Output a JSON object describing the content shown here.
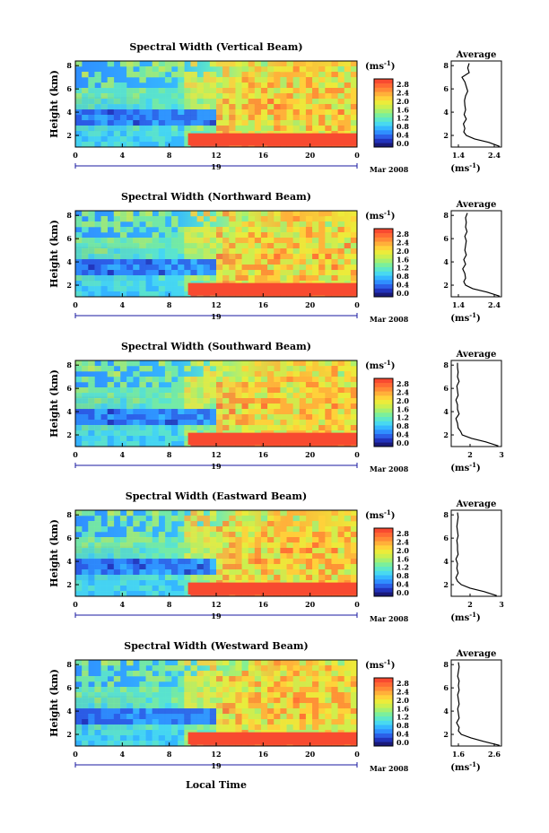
{
  "figure": {
    "xlabel": "Local Time",
    "day_label": "19",
    "month_label": "Mar 2008",
    "ylabel": "Height (km)",
    "colorbar_unit": "(ms",
    "colorbar_unit_exp": "-1",
    "average_title": "Average"
  },
  "colorbar": {
    "ticks": [
      "2.8",
      "2.4",
      "2.0",
      "1.6",
      "1.2",
      "0.8",
      "0.4",
      "0.0"
    ],
    "colors": [
      "#1a1a7a",
      "#2233bb",
      "#2c5fe8",
      "#2f8fff",
      "#35b7ff",
      "#48d9f0",
      "#5ee8c8",
      "#7bef9c",
      "#a6f070",
      "#cdef4e",
      "#ecec3a",
      "#ffd23a",
      "#ffb03a",
      "#ff8a36",
      "#ff6a34",
      "#f84a30"
    ]
  },
  "chart_data": [
    {
      "type": "heatmap",
      "title": "Spectral Width (Vertical Beam)",
      "xlabel": "Local Time",
      "ylabel": "Height (km)",
      "x_ticks": [
        "0",
        "4",
        "8",
        "12",
        "16",
        "20",
        "0"
      ],
      "xlim": [
        0,
        24
      ],
      "y_ticks": [
        "2",
        "4",
        "6",
        "8"
      ],
      "ylim": [
        1,
        8.4
      ],
      "colorbar": {
        "label": "(ms-1)",
        "range": [
          0.0,
          2.8
        ]
      },
      "average_profile": {
        "title": "Average",
        "xlabel": "(ms-1)",
        "x_ticks": [
          "1.4",
          "2.4"
        ],
        "xlim": [
          1.2,
          2.6
        ],
        "y_ticks": [
          "2",
          "4",
          "6",
          "8"
        ],
        "ylim": [
          1,
          8.4
        ],
        "height": [
          1.05,
          1.4,
          1.7,
          2.0,
          2.3,
          2.6,
          3.0,
          3.4,
          3.8,
          4.2,
          4.6,
          5.0,
          5.4,
          5.8,
          6.2,
          6.6,
          7.0,
          7.4,
          7.8,
          8.2
        ],
        "width": [
          2.55,
          2.25,
          1.85,
          1.62,
          1.55,
          1.58,
          1.54,
          1.62,
          1.56,
          1.6,
          1.58,
          1.57,
          1.6,
          1.66,
          1.62,
          1.58,
          1.5,
          1.7,
          1.66,
          1.7
        ]
      }
    },
    {
      "type": "heatmap",
      "title": "Spectral Width (Northward Beam)",
      "xlabel": "Local Time",
      "ylabel": "Height (km)",
      "x_ticks": [
        "0",
        "4",
        "8",
        "12",
        "16",
        "20",
        "0"
      ],
      "xlim": [
        0,
        24
      ],
      "y_ticks": [
        "2",
        "4",
        "6",
        "8"
      ],
      "ylim": [
        1,
        8.4
      ],
      "colorbar": {
        "label": "(ms-1)",
        "range": [
          0.0,
          2.8
        ]
      },
      "average_profile": {
        "title": "Average",
        "xlabel": "(ms-1)",
        "x_ticks": [
          "1.4",
          "2.4"
        ],
        "xlim": [
          1.2,
          2.6
        ],
        "y_ticks": [
          "2",
          "4",
          "6",
          "8"
        ],
        "ylim": [
          1,
          8.4
        ],
        "height": [
          1.05,
          1.4,
          1.7,
          2.0,
          2.3,
          2.6,
          3.0,
          3.4,
          3.8,
          4.2,
          4.6,
          5.0,
          5.4,
          5.8,
          6.2,
          6.6,
          7.0,
          7.4,
          7.8,
          8.2
        ],
        "width": [
          2.55,
          2.2,
          1.8,
          1.6,
          1.55,
          1.6,
          1.58,
          1.52,
          1.6,
          1.55,
          1.62,
          1.58,
          1.6,
          1.62,
          1.58,
          1.64,
          1.6,
          1.62,
          1.6,
          1.65
        ]
      }
    },
    {
      "type": "heatmap",
      "title": "Spectral Width (Southward Beam)",
      "xlabel": "Local Time",
      "ylabel": "Height (km)",
      "x_ticks": [
        "0",
        "4",
        "8",
        "12",
        "16",
        "20",
        "0"
      ],
      "xlim": [
        0,
        24
      ],
      "y_ticks": [
        "2",
        "4",
        "6",
        "8"
      ],
      "ylim": [
        1,
        8.4
      ],
      "colorbar": {
        "label": "(ms-1)",
        "range": [
          0.0,
          2.8
        ]
      },
      "average_profile": {
        "title": "Average",
        "xlabel": "(ms-1)",
        "x_ticks": [
          "2",
          "3"
        ],
        "xlim": [
          1.4,
          3.0
        ],
        "y_ticks": [
          "2",
          "4",
          "6",
          "8"
        ],
        "ylim": [
          1,
          8.4
        ],
        "height": [
          1.05,
          1.4,
          1.7,
          2.0,
          2.3,
          2.6,
          3.0,
          3.4,
          3.8,
          4.2,
          4.6,
          5.0,
          5.4,
          5.8,
          6.2,
          6.6,
          7.0,
          7.4,
          7.8,
          8.2
        ],
        "width": [
          2.9,
          2.5,
          2.05,
          1.75,
          1.7,
          1.62,
          1.6,
          1.55,
          1.65,
          1.6,
          1.6,
          1.55,
          1.62,
          1.6,
          1.58,
          1.65,
          1.6,
          1.62,
          1.6,
          1.6
        ]
      }
    },
    {
      "type": "heatmap",
      "title": "Spectral Width (Eastward Beam)",
      "xlabel": "Local Time",
      "ylabel": "Height (km)",
      "x_ticks": [
        "0",
        "4",
        "8",
        "12",
        "16",
        "20",
        "0"
      ],
      "xlim": [
        0,
        24
      ],
      "y_ticks": [
        "2",
        "4",
        "6",
        "8"
      ],
      "ylim": [
        1,
        8.4
      ],
      "colorbar": {
        "label": "(ms-1)",
        "range": [
          0.0,
          2.8
        ]
      },
      "average_profile": {
        "title": "Average",
        "xlabel": "(ms-1)",
        "x_ticks": [
          "2",
          "3"
        ],
        "xlim": [
          1.4,
          3.0
        ],
        "y_ticks": [
          "2",
          "4",
          "6",
          "8"
        ],
        "ylim": [
          1,
          8.4
        ],
        "height": [
          1.05,
          1.4,
          1.7,
          2.0,
          2.3,
          2.6,
          3.0,
          3.4,
          3.8,
          4.2,
          4.6,
          5.0,
          5.4,
          5.8,
          6.2,
          6.6,
          7.0,
          7.4,
          7.8,
          8.2
        ],
        "width": [
          2.85,
          2.45,
          2.0,
          1.72,
          1.6,
          1.55,
          1.62,
          1.58,
          1.6,
          1.55,
          1.62,
          1.6,
          1.6,
          1.58,
          1.62,
          1.6,
          1.58,
          1.6,
          1.62,
          1.6
        ]
      }
    },
    {
      "type": "heatmap",
      "title": "Spectral Width (Westward Beam)",
      "xlabel": "Local Time",
      "ylabel": "Height (km)",
      "x_ticks": [
        "0",
        "4",
        "8",
        "12",
        "16",
        "20",
        "0"
      ],
      "xlim": [
        0,
        24
      ],
      "y_ticks": [
        "2",
        "4",
        "6",
        "8"
      ],
      "ylim": [
        1,
        8.4
      ],
      "colorbar": {
        "label": "(ms-1)",
        "range": [
          0.0,
          2.8
        ]
      },
      "average_profile": {
        "title": "Average",
        "xlabel": "(ms-1)",
        "x_ticks": [
          "1.6",
          "2.6"
        ],
        "xlim": [
          1.4,
          2.8
        ],
        "y_ticks": [
          "2",
          "4",
          "6",
          "8"
        ],
        "ylim": [
          1,
          8.4
        ],
        "height": [
          1.05,
          1.4,
          1.7,
          2.0,
          2.3,
          2.6,
          3.0,
          3.4,
          3.8,
          4.2,
          4.6,
          5.0,
          5.4,
          5.8,
          6.2,
          6.6,
          7.0,
          7.4,
          7.8,
          8.2
        ],
        "width": [
          2.75,
          2.3,
          1.95,
          1.68,
          1.6,
          1.62,
          1.55,
          1.62,
          1.6,
          1.58,
          1.62,
          1.6,
          1.58,
          1.62,
          1.6,
          1.62,
          1.58,
          1.6,
          1.62,
          1.6
        ]
      }
    }
  ]
}
